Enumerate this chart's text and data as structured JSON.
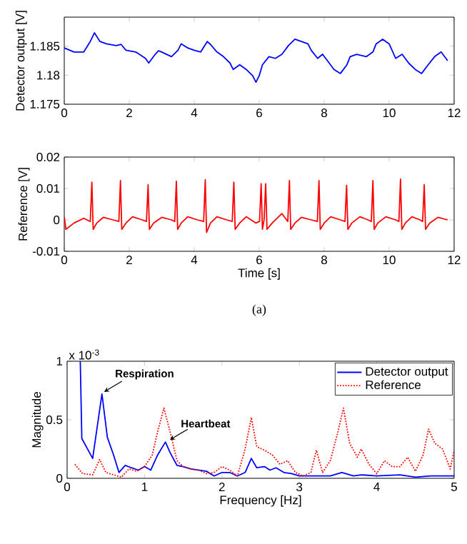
{
  "chart_data": [
    {
      "type": "line",
      "ylabel": "Detector output [V]",
      "xlim": [
        0,
        12
      ],
      "ylim": [
        1.175,
        1.19
      ],
      "xticks": [
        0,
        2,
        4,
        6,
        8,
        10,
        12
      ],
      "yticks": [
        1.175,
        1.18,
        1.185
      ],
      "series": [
        {
          "color": "#0000ff",
          "x": [
            0,
            0.3,
            0.6,
            0.8,
            0.93,
            1.1,
            1.3,
            1.6,
            1.75,
            1.9,
            2.2,
            2.5,
            2.6,
            2.8,
            2.9,
            3.0,
            3.3,
            3.5,
            3.6,
            3.8,
            4.0,
            4.2,
            4.4,
            4.5,
            4.7,
            4.9,
            5.1,
            5.2,
            5.4,
            5.6,
            5.8,
            5.9,
            6.0,
            6.1,
            6.3,
            6.5,
            6.7,
            6.9,
            7.1,
            7.3,
            7.5,
            7.6,
            7.8,
            7.95,
            8.1,
            8.3,
            8.5,
            8.7,
            8.8,
            9.0,
            9.3,
            9.5,
            9.6,
            9.8,
            10.0,
            10.2,
            10.4,
            10.6,
            10.8,
            11.0,
            11.2,
            11.4,
            11.6,
            11.8
          ],
          "values": [
            1.1847,
            1.184,
            1.184,
            1.1858,
            1.1873,
            1.1858,
            1.1854,
            1.1851,
            1.1853,
            1.1843,
            1.184,
            1.1829,
            1.1821,
            1.1836,
            1.1842,
            1.184,
            1.1832,
            1.1843,
            1.1854,
            1.1847,
            1.1843,
            1.184,
            1.1858,
            1.1853,
            1.184,
            1.1832,
            1.1821,
            1.181,
            1.1818,
            1.181,
            1.1799,
            1.1788,
            1.1799,
            1.1818,
            1.1832,
            1.1829,
            1.1836,
            1.1851,
            1.1862,
            1.1858,
            1.1854,
            1.1843,
            1.1829,
            1.1836,
            1.1825,
            1.181,
            1.1803,
            1.1818,
            1.1832,
            1.1836,
            1.1832,
            1.184,
            1.1854,
            1.1862,
            1.1854,
            1.1829,
            1.1836,
            1.1821,
            1.181,
            1.1803,
            1.1818,
            1.1832,
            1.184,
            1.1825
          ]
        }
      ]
    },
    {
      "type": "line",
      "xlabel": "Time [s]",
      "ylabel": "Reference [V]",
      "xlim": [
        0,
        12
      ],
      "ylim": [
        -0.01,
        0.02
      ],
      "xticks": [
        0,
        2,
        4,
        6,
        8,
        10,
        12
      ],
      "yticks": [
        -0.01,
        0,
        0.01,
        0.02
      ],
      "annotations": [
        "(a)"
      ],
      "series": [
        {
          "color": "#ff0000",
          "x": [
            0,
            0.05,
            0.3,
            0.6,
            0.8,
            0.85,
            0.89,
            1.0,
            1.2,
            1.5,
            1.68,
            1.73,
            1.77,
            1.9,
            2.1,
            2.4,
            2.53,
            2.58,
            2.62,
            2.75,
            3.0,
            3.3,
            3.4,
            3.45,
            3.49,
            3.6,
            3.8,
            4.1,
            4.29,
            4.34,
            4.38,
            4.5,
            4.7,
            5.0,
            5.17,
            5.22,
            5.26,
            5.4,
            5.6,
            5.9,
            6.01,
            6.06,
            6.1,
            6.15,
            6.2,
            6.24,
            6.4,
            6.7,
            6.88,
            6.93,
            6.97,
            7.1,
            7.3,
            7.6,
            7.79,
            7.84,
            7.88,
            8.0,
            8.2,
            8.5,
            8.64,
            8.69,
            8.73,
            8.85,
            9.1,
            9.35,
            9.45,
            9.5,
            9.54,
            9.65,
            9.9,
            10.2,
            10.3,
            10.35,
            10.39,
            10.5,
            10.7,
            10.95,
            11.03,
            11.08,
            11.12,
            11.25,
            11.5,
            11.8
          ],
          "values": [
            0.001,
            -0.003,
            -0.001,
            0.0005,
            -0.0005,
            0.012,
            -0.003,
            -0.001,
            0.0008,
            0,
            -0.0005,
            0.0125,
            -0.003,
            -0.001,
            0.001,
            0,
            -0.0005,
            0.0112,
            -0.003,
            -0.001,
            0.0008,
            0,
            -0.0005,
            0.0123,
            -0.003,
            -0.001,
            0.001,
            0,
            -0.0005,
            0.0128,
            -0.004,
            -0.001,
            0.001,
            0,
            -0.0005,
            0.012,
            -0.003,
            -0.001,
            0.001,
            -0.001,
            -0.0005,
            0.0115,
            -0.003,
            0,
            0.0115,
            -0.003,
            -0.001,
            0.002,
            -0.0005,
            0.0125,
            -0.003,
            -0.001,
            0.0008,
            0,
            -0.0005,
            0.0125,
            -0.003,
            -0.001,
            0.001,
            0,
            -0.0005,
            0.011,
            -0.003,
            -0.001,
            0.001,
            0,
            -0.0005,
            0.0125,
            -0.003,
            -0.001,
            0.001,
            0,
            -0.0005,
            0.013,
            -0.003,
            -0.001,
            0.001,
            0,
            -0.0005,
            0.0112,
            -0.003,
            -0.001,
            0.0008,
            0
          ]
        }
      ]
    },
    {
      "type": "line",
      "xlabel": "Frequency [Hz]",
      "ylabel": "Magnitude",
      "xlim": [
        0,
        5
      ],
      "ylim": [
        0,
        1
      ],
      "xticks": [
        0,
        1,
        2,
        3,
        4,
        5
      ],
      "yticks": [
        0,
        0.5,
        1
      ],
      "legend": "top right",
      "annotations": [
        "x 10$^{-3}$",
        {
          "text": "Respiration",
          "x": 0.45,
          "y": 0.72
        },
        {
          "text": "Heartbeat",
          "x": 1.3,
          "y": 0.31
        }
      ],
      "series": [
        {
          "name": "Detector output",
          "color": "#0000ff",
          "line_style": "solid",
          "x": [
            0.17,
            0.19,
            0.33,
            0.45,
            0.52,
            0.6,
            0.67,
            0.75,
            0.83,
            0.92,
            1.0,
            1.08,
            1.17,
            1.27,
            1.33,
            1.42,
            1.5,
            1.6,
            1.7,
            1.8,
            1.9,
            2.0,
            2.1,
            2.2,
            2.3,
            2.38,
            2.45,
            2.55,
            2.62,
            2.7,
            2.8,
            2.9,
            3.0,
            3.2,
            3.4,
            3.55,
            3.7,
            3.8,
            4.0,
            4.3,
            4.5,
            4.7,
            5.0
          ],
          "values": [
            1,
            0.34,
            0.17,
            0.72,
            0.35,
            0.2,
            0.05,
            0.11,
            0.09,
            0.07,
            0.1,
            0.07,
            0.2,
            0.31,
            0.22,
            0.11,
            0.1,
            0.08,
            0.07,
            0.06,
            0.02,
            0.05,
            0.05,
            0.02,
            0.05,
            0.17,
            0.09,
            0.1,
            0.07,
            0.09,
            0.05,
            0.04,
            0.02,
            0.02,
            0.02,
            0.05,
            0.02,
            0.03,
            0.02,
            0.03,
            0.01,
            0.02,
            0.02
          ]
        },
        {
          "name": "Reference",
          "color": "#ff0000",
          "line_style": "dotted",
          "x": [
            0.1,
            0.2,
            0.33,
            0.42,
            0.5,
            0.6,
            0.7,
            0.8,
            0.9,
            1.0,
            1.1,
            1.17,
            1.25,
            1.33,
            1.42,
            1.5,
            1.6,
            1.7,
            1.8,
            1.9,
            2.0,
            2.1,
            2.2,
            2.3,
            2.38,
            2.45,
            2.55,
            2.65,
            2.75,
            2.85,
            2.95,
            3.05,
            3.15,
            3.22,
            3.3,
            3.4,
            3.5,
            3.57,
            3.65,
            3.75,
            3.8,
            3.9,
            4.0,
            4.1,
            4.2,
            4.3,
            4.4,
            4.5,
            4.6,
            4.67,
            4.75,
            4.85,
            4.95,
            5.0
          ],
          "values": [
            0.12,
            0.04,
            0.03,
            0.16,
            0.05,
            0.03,
            0.01,
            0.08,
            0.06,
            0.1,
            0.2,
            0.4,
            0.6,
            0.4,
            0.15,
            0.1,
            0.08,
            0.07,
            0.04,
            0.05,
            0.1,
            0.07,
            0.02,
            0.25,
            0.52,
            0.27,
            0.24,
            0.2,
            0.12,
            0.15,
            0.05,
            0.02,
            0.05,
            0.24,
            0.05,
            0.15,
            0.4,
            0.6,
            0.3,
            0.18,
            0.25,
            0.12,
            0.04,
            0.15,
            0.1,
            0.1,
            0.18,
            0.06,
            0.2,
            0.42,
            0.3,
            0.25,
            0.08,
            0.24
          ]
        }
      ]
    }
  ]
}
